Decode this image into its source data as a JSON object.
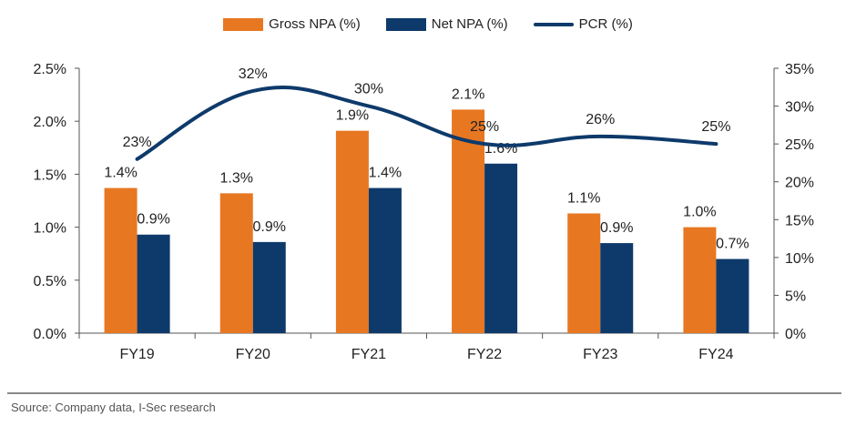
{
  "chart_data": {
    "type": "bar",
    "title": "",
    "categories": [
      "FY19",
      "FY20",
      "FY21",
      "FY22",
      "FY23",
      "FY24"
    ],
    "series": [
      {
        "name": "Gross NPA (%)",
        "kind": "bar",
        "axis": "left",
        "color": "#E87722",
        "values": [
          1.37,
          1.32,
          1.91,
          2.11,
          1.13,
          1.0
        ],
        "labels": [
          "1.4%",
          "1.3%",
          "1.9%",
          "2.1%",
          "1.1%",
          "1.0%"
        ]
      },
      {
        "name": "Net NPA (%)",
        "kind": "bar",
        "axis": "left",
        "color": "#0E3A6B",
        "values": [
          0.93,
          0.86,
          1.37,
          1.6,
          0.85,
          0.7
        ],
        "labels": [
          "0.9%",
          "0.9%",
          "1.4%",
          "1.6%",
          "0.9%",
          "0.7%"
        ]
      },
      {
        "name": "PCR (%)",
        "kind": "line",
        "axis": "right",
        "color": "#0E3A6B",
        "values": [
          23,
          32,
          30,
          25,
          26,
          25
        ],
        "labels": [
          "23%",
          "32%",
          "30%",
          "25%",
          "26%",
          "25%"
        ]
      }
    ],
    "y_left": {
      "min": 0,
      "max": 2.5,
      "ticks": [
        "0.0%",
        "0.5%",
        "1.0%",
        "1.5%",
        "2.0%",
        "2.5%"
      ]
    },
    "y_right": {
      "min": 0,
      "max": 35,
      "ticks": [
        "0%",
        "5%",
        "10%",
        "15%",
        "20%",
        "25%",
        "30%",
        "35%"
      ]
    },
    "legend_position": "top-center",
    "grid": false
  },
  "source": "Source: Company data, I-Sec research"
}
